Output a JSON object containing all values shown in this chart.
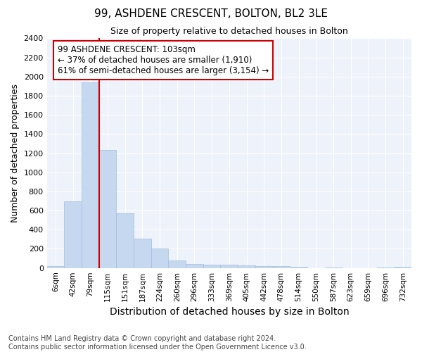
{
  "title": "99, ASHDENE CRESCENT, BOLTON, BL2 3LE",
  "subtitle": "Size of property relative to detached houses in Bolton",
  "xlabel": "Distribution of detached houses by size in Bolton",
  "ylabel": "Number of detached properties",
  "bar_color": "#c5d8f0",
  "bar_edge_color": "#a0bedd",
  "bin_labels": [
    "6sqm",
    "42sqm",
    "79sqm",
    "115sqm",
    "151sqm",
    "187sqm",
    "224sqm",
    "260sqm",
    "296sqm",
    "333sqm",
    "369sqm",
    "405sqm",
    "442sqm",
    "478sqm",
    "514sqm",
    "550sqm",
    "587sqm",
    "623sqm",
    "659sqm",
    "696sqm",
    "732sqm"
  ],
  "bar_heights": [
    20,
    700,
    1940,
    1230,
    575,
    305,
    200,
    80,
    45,
    35,
    35,
    30,
    20,
    18,
    10,
    0,
    5,
    0,
    0,
    5,
    15
  ],
  "vline_x": 2.5,
  "annotation_text": "99 ASHDENE CRESCENT: 103sqm\n← 37% of detached houses are smaller (1,910)\n61% of semi-detached houses are larger (3,154) →",
  "ylim": [
    0,
    2400
  ],
  "yticks": [
    0,
    200,
    400,
    600,
    800,
    1000,
    1200,
    1400,
    1600,
    1800,
    2000,
    2200,
    2400
  ],
  "footnote": "Contains HM Land Registry data © Crown copyright and database right 2024.\nContains public sector information licensed under the Open Government Licence v3.0.",
  "background_color": "#ffffff",
  "plot_bg_color": "#eef2fa",
  "grid_color": "#ffffff",
  "annotation_box_facecolor": "#ffffff",
  "annotation_box_edgecolor": "#cc0000",
  "vline_color": "#cc0000",
  "title_fontsize": 11,
  "subtitle_fontsize": 9,
  "ylabel_fontsize": 9,
  "xlabel_fontsize": 10,
  "ytick_fontsize": 8,
  "xtick_fontsize": 7.5,
  "annot_fontsize": 8.5,
  "footnote_fontsize": 7
}
